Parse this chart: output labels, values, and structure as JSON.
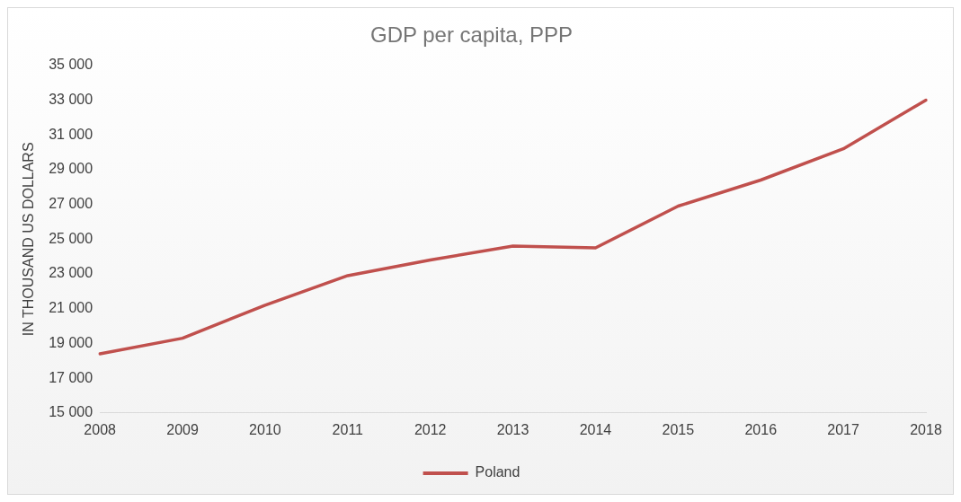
{
  "chart_data": {
    "type": "line",
    "title": "GDP per capita, PPP",
    "ylabel": "IN THOUSAND US DOLLARS",
    "categories": [
      "2008",
      "2009",
      "2010",
      "2011",
      "2012",
      "2013",
      "2014",
      "2015",
      "2016",
      "2017",
      "2018"
    ],
    "series": [
      {
        "name": "Poland",
        "color": "#c0504d",
        "values": [
          18400,
          19300,
          21200,
          22900,
          23800,
          24600,
          24500,
          26900,
          28400,
          30200,
          33000
        ]
      }
    ],
    "ylim": [
      15000,
      35000
    ],
    "yticks": [
      {
        "value": 15000,
        "label": "15 000"
      },
      {
        "value": 17000,
        "label": "17 000"
      },
      {
        "value": 19000,
        "label": "19 000"
      },
      {
        "value": 21000,
        "label": "21 000"
      },
      {
        "value": 23000,
        "label": "23 000"
      },
      {
        "value": 25000,
        "label": "25 000"
      },
      {
        "value": 27000,
        "label": "27 000"
      },
      {
        "value": 29000,
        "label": "29 000"
      },
      {
        "value": 31000,
        "label": "31 000"
      },
      {
        "value": 33000,
        "label": "33 000"
      },
      {
        "value": 35000,
        "label": "35 000"
      }
    ],
    "grid": false,
    "legend": "bottom",
    "marker": "none",
    "line_style": "solid"
  }
}
